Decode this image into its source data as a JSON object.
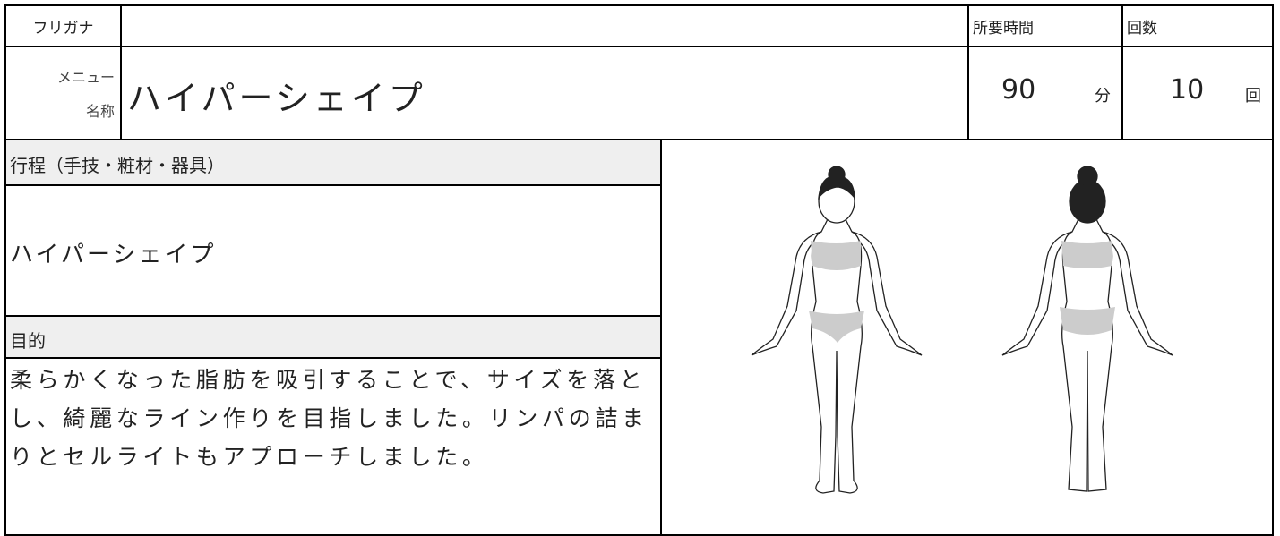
{
  "form": {
    "furigana_label": "フリガナ",
    "menu_label": [
      "メニュー",
      "名称"
    ],
    "menu_name": "ハイパーシェイプ",
    "time_label": "所要時間",
    "time": 90,
    "time_unit": "分",
    "count_label": "回数",
    "count": 10,
    "count_unit": "回",
    "process_label": "行程（手技・粧材・器具）",
    "process": "ハイパーシェイプ",
    "purpose_label": "目的",
    "purpose": "柔らかくなった脂肪を吸引することで、サイズを落とし、綺麗なライン作りを目指しました。リンパの詰まりとセルライトもアプローチしました。"
  }
}
